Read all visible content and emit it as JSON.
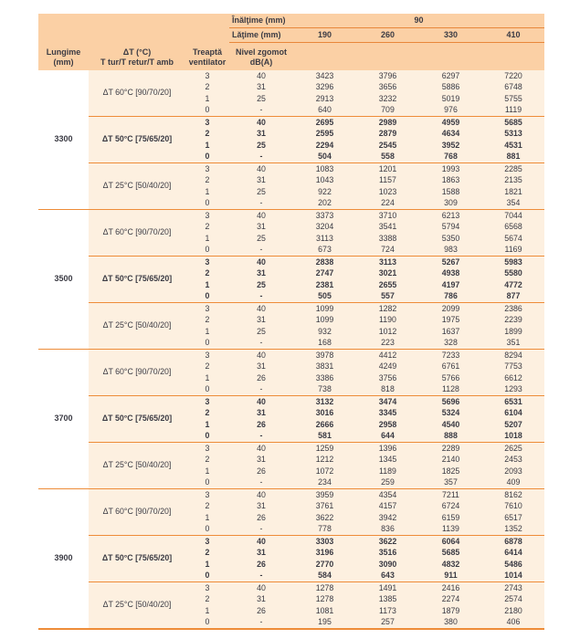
{
  "header": {
    "inaltime_label": "Înălţime (mm)",
    "inaltime_value": "90",
    "latime_label": "Lăţime (mm)",
    "widths": [
      "190",
      "260",
      "330",
      "410"
    ],
    "lungime_line1": "Lungime",
    "lungime_line2": "(mm)",
    "dt_line1": "ΔT (°C)",
    "dt_line2": "T tur/T retur/T amb",
    "treapta_line1": "Treaptă",
    "treapta_line2": "ventilator",
    "zgomot_line1": "Nivel zgomot",
    "zgomot_line2": "dB(A)"
  },
  "colors": {
    "header_bg": "#fbd0a5",
    "body_bg": "#fdf0e0",
    "rule_orange": "#ee8c38",
    "text": "#3a3a43"
  },
  "groups": [
    {
      "lungime": "3300",
      "blocks": [
        {
          "dt": "ΔT 60°C [90/70/20]",
          "bold": false,
          "rows": [
            {
              "treapta": "3",
              "db": "40",
              "values": [
                3423,
                3796,
                6297,
                7220
              ]
            },
            {
              "treapta": "2",
              "db": "31",
              "values": [
                3296,
                3656,
                5886,
                6748
              ]
            },
            {
              "treapta": "1",
              "db": "25",
              "values": [
                2913,
                3232,
                5019,
                5755
              ]
            },
            {
              "treapta": "0",
              "db": "-",
              "values": [
                640,
                709,
                976,
                1119
              ]
            }
          ]
        },
        {
          "dt": "ΔT 50°C [75/65/20]",
          "bold": true,
          "rows": [
            {
              "treapta": "3",
              "db": "40",
              "values": [
                2695,
                2989,
                4959,
                5685
              ]
            },
            {
              "treapta": "2",
              "db": "31",
              "values": [
                2595,
                2879,
                4634,
                5313
              ]
            },
            {
              "treapta": "1",
              "db": "25",
              "values": [
                2294,
                2545,
                3952,
                4531
              ]
            },
            {
              "treapta": "0",
              "db": "-",
              "values": [
                504,
                558,
                768,
                881
              ]
            }
          ]
        },
        {
          "dt": "ΔT 25°C [50/40/20]",
          "bold": false,
          "rows": [
            {
              "treapta": "3",
              "db": "40",
              "values": [
                1083,
                1201,
                1993,
                2285
              ]
            },
            {
              "treapta": "2",
              "db": "31",
              "values": [
                1043,
                1157,
                1863,
                2135
              ]
            },
            {
              "treapta": "1",
              "db": "25",
              "values": [
                922,
                1023,
                1588,
                1821
              ]
            },
            {
              "treapta": "0",
              "db": "-",
              "values": [
                202,
                224,
                309,
                354
              ]
            }
          ]
        }
      ]
    },
    {
      "lungime": "3500",
      "blocks": [
        {
          "dt": "ΔT 60°C [90/70/20]",
          "bold": false,
          "rows": [
            {
              "treapta": "3",
              "db": "40",
              "values": [
                3373,
                3710,
                6213,
                7044
              ]
            },
            {
              "treapta": "2",
              "db": "31",
              "values": [
                3204,
                3541,
                5794,
                6568
              ]
            },
            {
              "treapta": "1",
              "db": "25",
              "values": [
                3113,
                3388,
                5350,
                5674
              ]
            },
            {
              "treapta": "0",
              "db": "-",
              "values": [
                673,
                724,
                983,
                1169
              ]
            }
          ]
        },
        {
          "dt": "ΔT 50°C [75/65/20]",
          "bold": true,
          "rows": [
            {
              "treapta": "3",
              "db": "40",
              "values": [
                2838,
                3113,
                5267,
                5983
              ]
            },
            {
              "treapta": "2",
              "db": "31",
              "values": [
                2747,
                3021,
                4938,
                5580
              ]
            },
            {
              "treapta": "1",
              "db": "25",
              "values": [
                2381,
                2655,
                4197,
                4772
              ]
            },
            {
              "treapta": "0",
              "db": "-",
              "values": [
                505,
                557,
                786,
                877
              ]
            }
          ]
        },
        {
          "dt": "ΔT 25°C [50/40/20]",
          "bold": false,
          "rows": [
            {
              "treapta": "3",
              "db": "40",
              "values": [
                1099,
                1282,
                2099,
                2386
              ]
            },
            {
              "treapta": "2",
              "db": "31",
              "values": [
                1099,
                1190,
                1975,
                2239
              ]
            },
            {
              "treapta": "1",
              "db": "25",
              "values": [
                932,
                1012,
                1637,
                1899
              ]
            },
            {
              "treapta": "0",
              "db": "-",
              "values": [
                168,
                223,
                328,
                351
              ]
            }
          ]
        }
      ]
    },
    {
      "lungime": "3700",
      "blocks": [
        {
          "dt": "ΔT 60°C [90/70/20]",
          "bold": false,
          "rows": [
            {
              "treapta": "3",
              "db": "40",
              "values": [
                3978,
                4412,
                7233,
                8294
              ]
            },
            {
              "treapta": "2",
              "db": "31",
              "values": [
                3831,
                4249,
                6761,
                7753
              ]
            },
            {
              "treapta": "1",
              "db": "26",
              "values": [
                3386,
                3756,
                5766,
                6612
              ]
            },
            {
              "treapta": "0",
              "db": "-",
              "values": [
                738,
                818,
                1128,
                1293
              ]
            }
          ]
        },
        {
          "dt": "ΔT 50°C [75/65/20]",
          "bold": true,
          "rows": [
            {
              "treapta": "3",
              "db": "40",
              "values": [
                3132,
                3474,
                5696,
                6531
              ]
            },
            {
              "treapta": "2",
              "db": "31",
              "values": [
                3016,
                3345,
                5324,
                6104
              ]
            },
            {
              "treapta": "1",
              "db": "26",
              "values": [
                2666,
                2958,
                4540,
                5207
              ]
            },
            {
              "treapta": "0",
              "db": "-",
              "values": [
                581,
                644,
                888,
                1018
              ]
            }
          ]
        },
        {
          "dt": "ΔT 25°C [50/40/20]",
          "bold": false,
          "rows": [
            {
              "treapta": "3",
              "db": "40",
              "values": [
                1259,
                1396,
                2289,
                2625
              ]
            },
            {
              "treapta": "2",
              "db": "31",
              "values": [
                1212,
                1345,
                2140,
                2453
              ]
            },
            {
              "treapta": "1",
              "db": "26",
              "values": [
                1072,
                1189,
                1825,
                2093
              ]
            },
            {
              "treapta": "0",
              "db": "-",
              "values": [
                234,
                259,
                357,
                409
              ]
            }
          ]
        }
      ]
    },
    {
      "lungime": "3900",
      "blocks": [
        {
          "dt": "ΔT 60°C [90/70/20]",
          "bold": false,
          "rows": [
            {
              "treapta": "3",
              "db": "40",
              "values": [
                3959,
                4354,
                7211,
                8162
              ]
            },
            {
              "treapta": "2",
              "db": "31",
              "values": [
                3761,
                4157,
                6724,
                7610
              ]
            },
            {
              "treapta": "1",
              "db": "26",
              "values": [
                3622,
                3942,
                6159,
                6517
              ]
            },
            {
              "treapta": "0",
              "db": "-",
              "values": [
                778,
                836,
                1139,
                1352
              ]
            }
          ]
        },
        {
          "dt": "ΔT 50°C [75/65/20]",
          "bold": true,
          "rows": [
            {
              "treapta": "3",
              "db": "40",
              "values": [
                3303,
                3622,
                6064,
                6878
              ]
            },
            {
              "treapta": "2",
              "db": "31",
              "values": [
                3196,
                3516,
                5685,
                6414
              ]
            },
            {
              "treapta": "1",
              "db": "26",
              "values": [
                2770,
                3090,
                4832,
                5486
              ]
            },
            {
              "treapta": "0",
              "db": "-",
              "values": [
                584,
                643,
                911,
                1014
              ]
            }
          ]
        },
        {
          "dt": "ΔT 25°C [50/40/20]",
          "bold": false,
          "rows": [
            {
              "treapta": "3",
              "db": "40",
              "values": [
                1278,
                1491,
                2416,
                2743
              ]
            },
            {
              "treapta": "2",
              "db": "31",
              "values": [
                1278,
                1385,
                2274,
                2574
              ]
            },
            {
              "treapta": "1",
              "db": "26",
              "values": [
                1081,
                1173,
                1879,
                2180
              ]
            },
            {
              "treapta": "0",
              "db": "-",
              "values": [
                195,
                257,
                380,
                406
              ]
            }
          ]
        }
      ]
    }
  ]
}
